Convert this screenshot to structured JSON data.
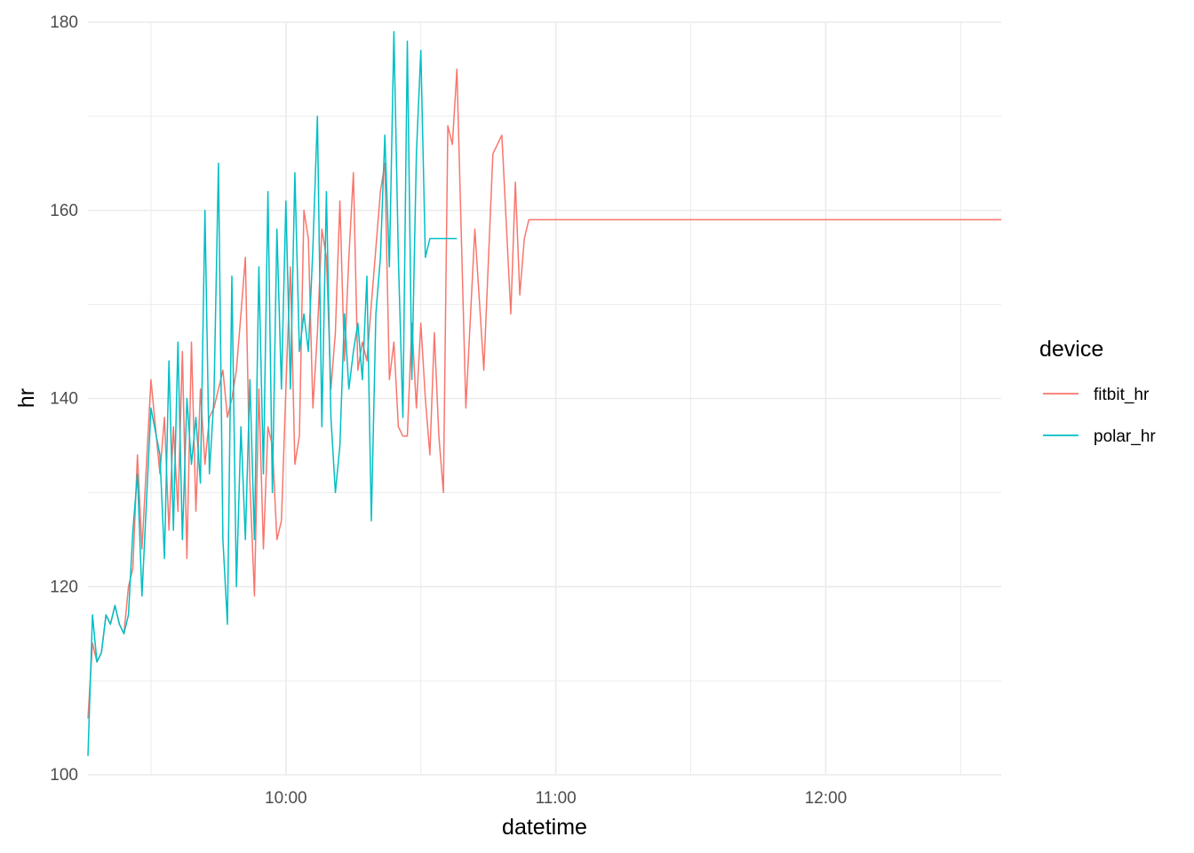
{
  "chart_data": {
    "type": "line",
    "title": "",
    "xlabel": "datetime",
    "ylabel": "hr",
    "x_type": "time",
    "x_range": [
      "09:16",
      "12:39"
    ],
    "ylim": [
      100,
      180
    ],
    "x_ticks": [
      "10:00",
      "11:00",
      "12:00"
    ],
    "y_ticks": [
      100,
      120,
      140,
      160,
      180
    ],
    "grid": true,
    "legend": {
      "title": "device",
      "position": "right"
    },
    "series": [
      {
        "name": "fitbit_hr",
        "color": "#F8766D",
        "x": [
          "09:16",
          "09:17",
          "09:18",
          "09:19",
          "09:20",
          "09:21",
          "09:22",
          "09:23",
          "09:24",
          "09:25",
          "09:26",
          "09:27",
          "09:28",
          "09:30",
          "09:32",
          "09:33",
          "09:34",
          "09:35",
          "09:36",
          "09:37",
          "09:38",
          "09:39",
          "09:40",
          "09:41",
          "09:42",
          "09:43",
          "09:44",
          "09:45",
          "09:46",
          "09:47",
          "09:48",
          "09:49",
          "09:50",
          "09:51",
          "09:52",
          "09:53",
          "09:54",
          "09:55",
          "09:56",
          "09:57",
          "09:58",
          "09:59",
          "10:00",
          "10:01",
          "10:02",
          "10:03",
          "10:04",
          "10:05",
          "10:06",
          "10:07",
          "10:08",
          "10:09",
          "10:10",
          "10:11",
          "10:12",
          "10:13",
          "10:14",
          "10:15",
          "10:16",
          "10:17",
          "10:18",
          "10:19",
          "10:20",
          "10:21",
          "10:22",
          "10:23",
          "10:24",
          "10:25",
          "10:26",
          "10:27",
          "10:28",
          "10:29",
          "10:30",
          "10:31",
          "10:32",
          "10:33",
          "10:34",
          "10:35",
          "10:36",
          "10:37",
          "10:38",
          "10:40",
          "10:42",
          "10:44",
          "10:46",
          "10:48",
          "10:50",
          "10:51",
          "10:52",
          "10:53",
          "10:54",
          "10:55",
          "10:56",
          "10:57",
          "10:58",
          "10:59",
          "11:00",
          "11:02",
          "11:04",
          "11:06",
          "11:08",
          "11:10",
          "11:12",
          "11:14",
          "11:16",
          "11:18",
          "11:20",
          "11:22",
          "11:24",
          "11:26",
          "11:28",
          "11:30",
          "11:32",
          "11:34",
          "11:36",
          "11:38",
          "11:40",
          "11:42",
          "11:44",
          "11:46",
          "11:48",
          "11:50",
          "11:52",
          "11:54",
          "11:56",
          "11:58",
          "12:00",
          "12:01",
          "12:02",
          "12:03",
          "12:04",
          "12:06",
          "12:08",
          "12:10",
          "12:12",
          "12:14",
          "12:16",
          "12:18",
          "12:20",
          "12:22",
          "12:24",
          "12:26",
          "12:28",
          "12:30",
          "12:32",
          "12:34",
          "12:36",
          "12:38",
          "12:39"
        ],
        "values": [
          106,
          114,
          112,
          113,
          117,
          116,
          118,
          116,
          115,
          120,
          122,
          134,
          124,
          142,
          132,
          138,
          126,
          137,
          128,
          145,
          123,
          146,
          128,
          141,
          133,
          138,
          139,
          141,
          143,
          138,
          140,
          143,
          149,
          155,
          131,
          119,
          141,
          124,
          137,
          135,
          125,
          127,
          141,
          154,
          133,
          136,
          160,
          157,
          139,
          147,
          158,
          155,
          141,
          147,
          161,
          144,
          155,
          164,
          143,
          146,
          144,
          150,
          156,
          162,
          165,
          142,
          146,
          137,
          136,
          136,
          148,
          139,
          148,
          140,
          134,
          147,
          136,
          130,
          169,
          167,
          175,
          139,
          158,
          143,
          166,
          168,
          149,
          163,
          151,
          157,
          159,
          159,
          159,
          159,
          159,
          159,
          159,
          159,
          159,
          159,
          159,
          159,
          159,
          159,
          159,
          159,
          159,
          159,
          159,
          159,
          159,
          159,
          159,
          159,
          159,
          159,
          159,
          159,
          159,
          159,
          159,
          159,
          159,
          159,
          159,
          159,
          159,
          159,
          159,
          159,
          159,
          159,
          159,
          159,
          159,
          159,
          159,
          159,
          159,
          159,
          159,
          159,
          159,
          159,
          159,
          159,
          159,
          159,
          159
        ]
      },
      {
        "name": "polar_hr",
        "color": "#00BFC4",
        "x": [
          "09:16",
          "09:17",
          "09:18",
          "09:19",
          "09:20",
          "09:21",
          "09:22",
          "09:23",
          "09:24",
          "09:25",
          "09:26",
          "09:27",
          "09:28",
          "09:30",
          "09:32",
          "09:33",
          "09:34",
          "09:35",
          "09:36",
          "09:37",
          "09:38",
          "09:39",
          "09:40",
          "09:41",
          "09:42",
          "09:43",
          "09:44",
          "09:45",
          "09:46",
          "09:47",
          "09:48",
          "09:49",
          "09:50",
          "09:51",
          "09:52",
          "09:53",
          "09:54",
          "09:55",
          "09:56",
          "09:57",
          "09:58",
          "09:59",
          "10:00",
          "10:01",
          "10:02",
          "10:03",
          "10:04",
          "10:05",
          "10:06",
          "10:07",
          "10:08",
          "10:09",
          "10:10",
          "10:11",
          "10:12",
          "10:13",
          "10:14",
          "10:15",
          "10:16",
          "10:17",
          "10:18",
          "10:19",
          "10:20",
          "10:21",
          "10:22",
          "10:23",
          "10:24",
          "10:25",
          "10:26",
          "10:27",
          "10:28",
          "10:29",
          "10:30",
          "10:31",
          "10:32",
          "10:33",
          "10:34",
          "10:35",
          "10:36",
          "10:37",
          "10:38"
        ],
        "values": [
          102,
          117,
          112,
          113,
          117,
          116,
          118,
          116,
          115,
          117,
          126,
          132,
          119,
          139,
          134,
          123,
          144,
          126,
          146,
          125,
          140,
          133,
          138,
          131,
          160,
          132,
          140,
          165,
          125,
          116,
          153,
          120,
          137,
          125,
          142,
          125,
          154,
          132,
          162,
          130,
          158,
          141,
          161,
          141,
          164,
          145,
          149,
          145,
          156,
          170,
          137,
          162,
          138,
          130,
          135,
          149,
          141,
          145,
          148,
          142,
          153,
          127,
          149,
          155,
          168,
          154,
          179,
          155,
          138,
          178,
          142,
          166,
          177,
          155,
          157,
          157,
          157,
          157,
          157,
          157,
          157
        ]
      }
    ]
  }
}
